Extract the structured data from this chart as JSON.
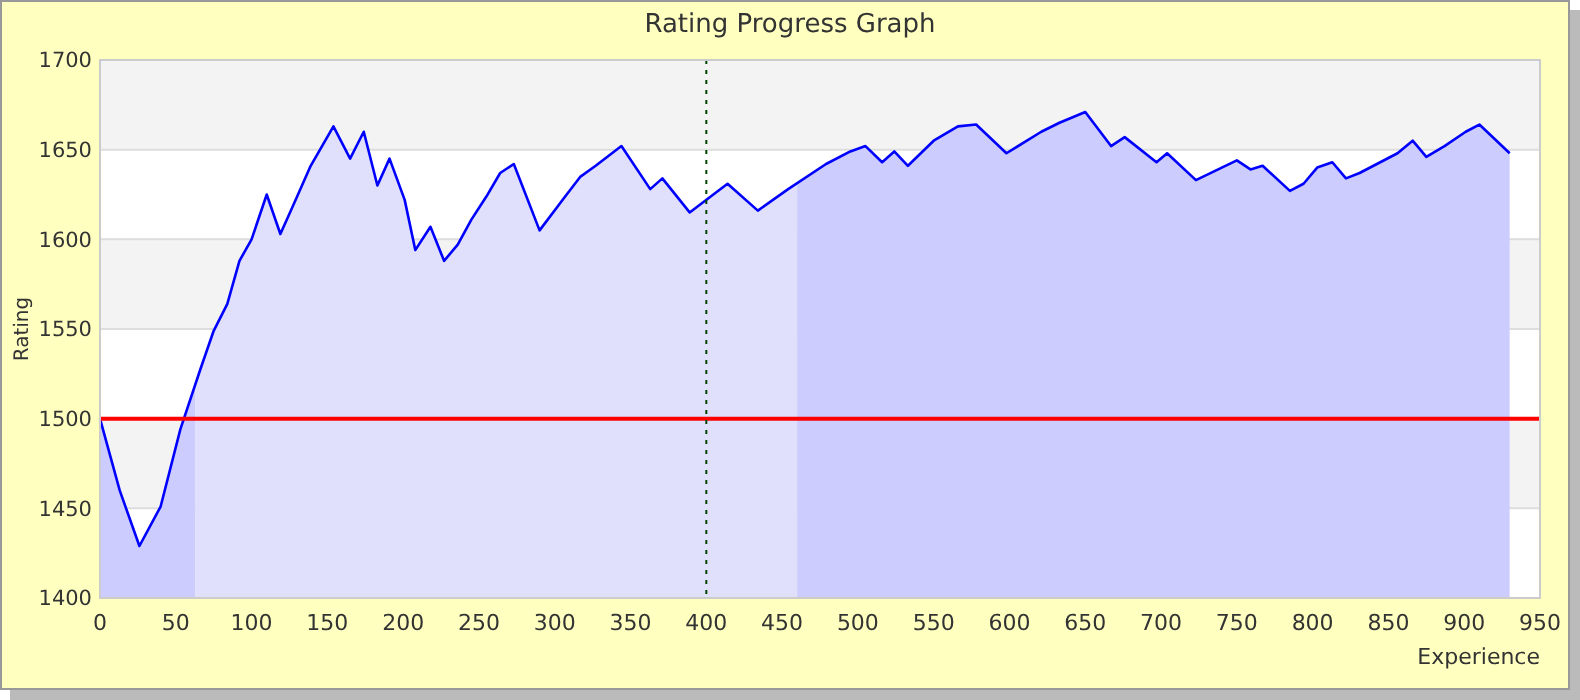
{
  "chart_data": {
    "type": "area",
    "title": "Rating Progress Graph",
    "xlabel": "Experience",
    "ylabel": "Rating",
    "xlim": [
      0,
      950
    ],
    "xticks": [
      0,
      50,
      100,
      150,
      200,
      250,
      300,
      350,
      400,
      450,
      500,
      550,
      600,
      650,
      700,
      750,
      800,
      850,
      900,
      950
    ],
    "ylim": [
      1400,
      1700
    ],
    "yticks": [
      1400,
      1450,
      1500,
      1550,
      1600,
      1650,
      1700
    ],
    "grid": "y",
    "legend": false,
    "marker": "none",
    "line_style": "solid",
    "series": [
      {
        "color": "#0000ff",
        "x": [
          0,
          13,
          26,
          40,
          53,
          66,
          75,
          84,
          92,
          100,
          110,
          119,
          128,
          139,
          154,
          165,
          174,
          183,
          191,
          201,
          208,
          218,
          227,
          236,
          245,
          255,
          264,
          273,
          290,
          307,
          317,
          327,
          344,
          363,
          371,
          389,
          414,
          434,
          454,
          479,
          495,
          505,
          516,
          524,
          533,
          550,
          566,
          578,
          598,
          621,
          633,
          650,
          667,
          676,
          697,
          704,
          723,
          750,
          759,
          767,
          785,
          794,
          803,
          813,
          822,
          831,
          856,
          866,
          875,
          887,
          901,
          910,
          930
        ],
        "values": [
          1500,
          1460,
          1429,
          1451,
          1494,
          1527,
          1549,
          1564,
          1588,
          1600,
          1625,
          1603,
          1620,
          1641,
          1663,
          1645,
          1660,
          1630,
          1645,
          1622,
          1594,
          1607,
          1588,
          1597,
          1611,
          1624,
          1637,
          1642,
          1605,
          1624,
          1635,
          1641,
          1652,
          1628,
          1634,
          1615,
          1631,
          1616,
          1628,
          1642,
          1649,
          1652,
          1643,
          1649,
          1641,
          1655,
          1663,
          1664,
          1648,
          1660,
          1665,
          1671,
          1652,
          1657,
          1643,
          1648,
          1633,
          1644,
          1639,
          1641,
          1627,
          1631,
          1640,
          1643,
          1634,
          1637,
          1648,
          1655,
          1646,
          1652,
          1660,
          1664,
          1648
        ]
      }
    ],
    "bands": [
      {
        "axis": "x",
        "from": 0,
        "to": 63,
        "color": "#ccccff"
      },
      {
        "axis": "x",
        "from": 63,
        "to": 460,
        "color": "#e0e0fc"
      },
      {
        "axis": "x",
        "from": 460,
        "to": 930,
        "color": "#ccccff"
      }
    ],
    "ref_lines": [
      {
        "axis": "y",
        "value": 1500,
        "color": "#ff0000",
        "line_style": "solid"
      },
      {
        "axis": "x",
        "value": 400,
        "color": "#004400",
        "line_style": "dotted"
      }
    ]
  }
}
